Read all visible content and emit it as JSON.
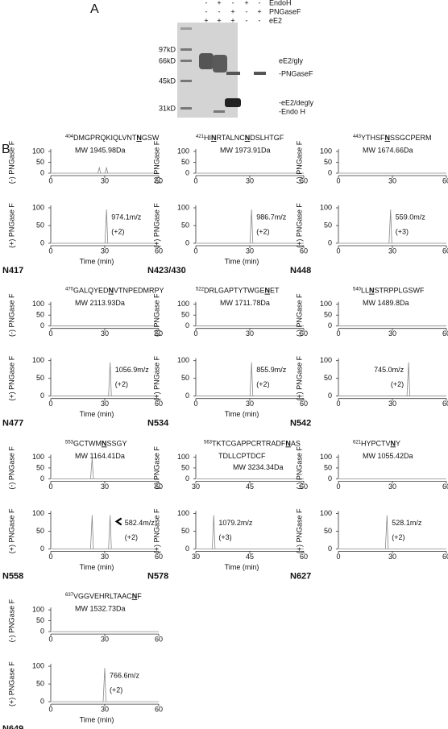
{
  "panel_a": {
    "label": "A",
    "rows": [
      {
        "name": "EndoH",
        "signs": [
          "-",
          "+",
          "-",
          "+",
          "-"
        ]
      },
      {
        "name": "PNGaseF",
        "signs": [
          "-",
          "-",
          "+",
          "-",
          "+"
        ]
      },
      {
        "name": "eE2",
        "signs": [
          "+",
          "+",
          "+",
          "-",
          "-"
        ]
      }
    ],
    "markers": [
      "97kD",
      "66kD",
      "45kD",
      "31kD"
    ],
    "bands": [
      "eE2/gly",
      "-PNGaseF",
      "-eE2/degly",
      "-Endo H"
    ]
  },
  "panel_b": {
    "label": "B",
    "y_label_minus": "(-) PNGase F",
    "y_label_plus": "(+) PNGase F",
    "x_label": "Time (min)",
    "ylim": [
      0,
      100
    ],
    "yticks": [
      0,
      50,
      100
    ],
    "sites": [
      {
        "site": "N417",
        "start": "404",
        "peptide": [
          "DMGPRQKIQLVNT",
          "N",
          "GSW"
        ],
        "mw": "MW 1945.98Da",
        "mz": "974.1m/z",
        "charge": "(+2)",
        "xlim": [
          0,
          60
        ],
        "xticks": [
          0,
          30,
          60
        ],
        "minus_peaks": [
          27,
          31
        ],
        "plus_peaks": [
          31
        ]
      },
      {
        "site": "N423/430",
        "start": "421",
        "peptide": [
          "HI",
          "N",
          "RTALNC",
          "N",
          "DSLHTGF"
        ],
        "mw": "MW 1973.91Da",
        "mz": "986.7m/z",
        "charge": "(+2)",
        "xlim": [
          0,
          60
        ],
        "xticks": [
          0,
          30,
          60
        ],
        "minus_peaks": [],
        "plus_peaks": [
          31
        ]
      },
      {
        "site": "N448",
        "start": "443",
        "peptide": [
          "YTHSF",
          "N",
          "SSGCPERM"
        ],
        "mw": "MW 1674.66Da",
        "mz": "559.0m/z",
        "charge": "(+3)",
        "xlim": [
          0,
          60
        ],
        "xticks": [
          0,
          30,
          60
        ],
        "minus_peaks": [],
        "plus_peaks": [
          29
        ]
      },
      {
        "site": "N477",
        "start": "470",
        "peptide": [
          "GALQYED",
          "N",
          "VTNPEDMRPY"
        ],
        "mw": "MW 2113.93Da",
        "mz": "1056.9m/z",
        "charge": "(+2)",
        "xlim": [
          0,
          60
        ],
        "xticks": [
          0,
          30,
          60
        ],
        "minus_peaks": [],
        "plus_peaks": [
          33
        ]
      },
      {
        "site": "N534",
        "start": "522",
        "peptide": [
          "DRLGAPTYTWGE",
          "N",
          "ET"
        ],
        "mw": "MW 1711.78Da",
        "mz": "855.9m/z",
        "charge": "(+2)",
        "xlim": [
          0,
          60
        ],
        "xticks": [
          0,
          30,
          60
        ],
        "minus_peaks": [],
        "plus_peaks": [
          31
        ]
      },
      {
        "site": "N542",
        "start": "540",
        "peptide": [
          "LL",
          "N",
          "STRPPLGSWF"
        ],
        "mw": "MW 1489.8Da",
        "mz": "745.0m/z",
        "charge": "(+2)",
        "xlim": [
          0,
          60
        ],
        "xticks": [
          0,
          30,
          60
        ],
        "minus_peaks": [],
        "plus_peaks": [
          39
        ]
      },
      {
        "site": "N558",
        "start": "553",
        "peptide": [
          "GCTWM",
          "N",
          "SSGY"
        ],
        "mw": "MW 1164.41Da",
        "mz": "582.4m/z",
        "charge": "(+2)",
        "xlim": [
          0,
          60
        ],
        "xticks": [
          0,
          30,
          60
        ],
        "minus_peaks": [
          23
        ],
        "plus_peaks": [
          23,
          33
        ]
      },
      {
        "site": "N578",
        "start": "563",
        "peptide": [
          "TKTCGAPPCRTRADF",
          "N",
          "AS"
        ],
        "line2": "TDLLCPTDCF",
        "mw": "MW 3234.34Da",
        "mz": "1079.2m/z",
        "charge": "(+3)",
        "xlim": [
          30,
          60
        ],
        "xticks": [
          30,
          45,
          60
        ],
        "minus_peaks": [],
        "plus_peaks": [
          35
        ]
      },
      {
        "site": "N627",
        "start": "621",
        "peptide": [
          "HYPCTV",
          "N",
          "Y"
        ],
        "mw": "MW 1055.42Da",
        "mz": "528.1m/z",
        "charge": "(+2)",
        "xlim": [
          0,
          60
        ],
        "xticks": [
          0,
          30,
          60
        ],
        "minus_peaks": [],
        "plus_peaks": [
          27
        ]
      },
      {
        "site": "N649",
        "start": "637",
        "peptide": [
          "VGGVEHRLTAAC",
          "N",
          "F"
        ],
        "mw": "MW 1532.73Da",
        "mz": "766.6m/z",
        "charge": "(+2)",
        "xlim": [
          0,
          60
        ],
        "xticks": [
          0,
          30,
          60
        ],
        "minus_peaks": [],
        "plus_peaks": [
          30
        ]
      }
    ]
  }
}
